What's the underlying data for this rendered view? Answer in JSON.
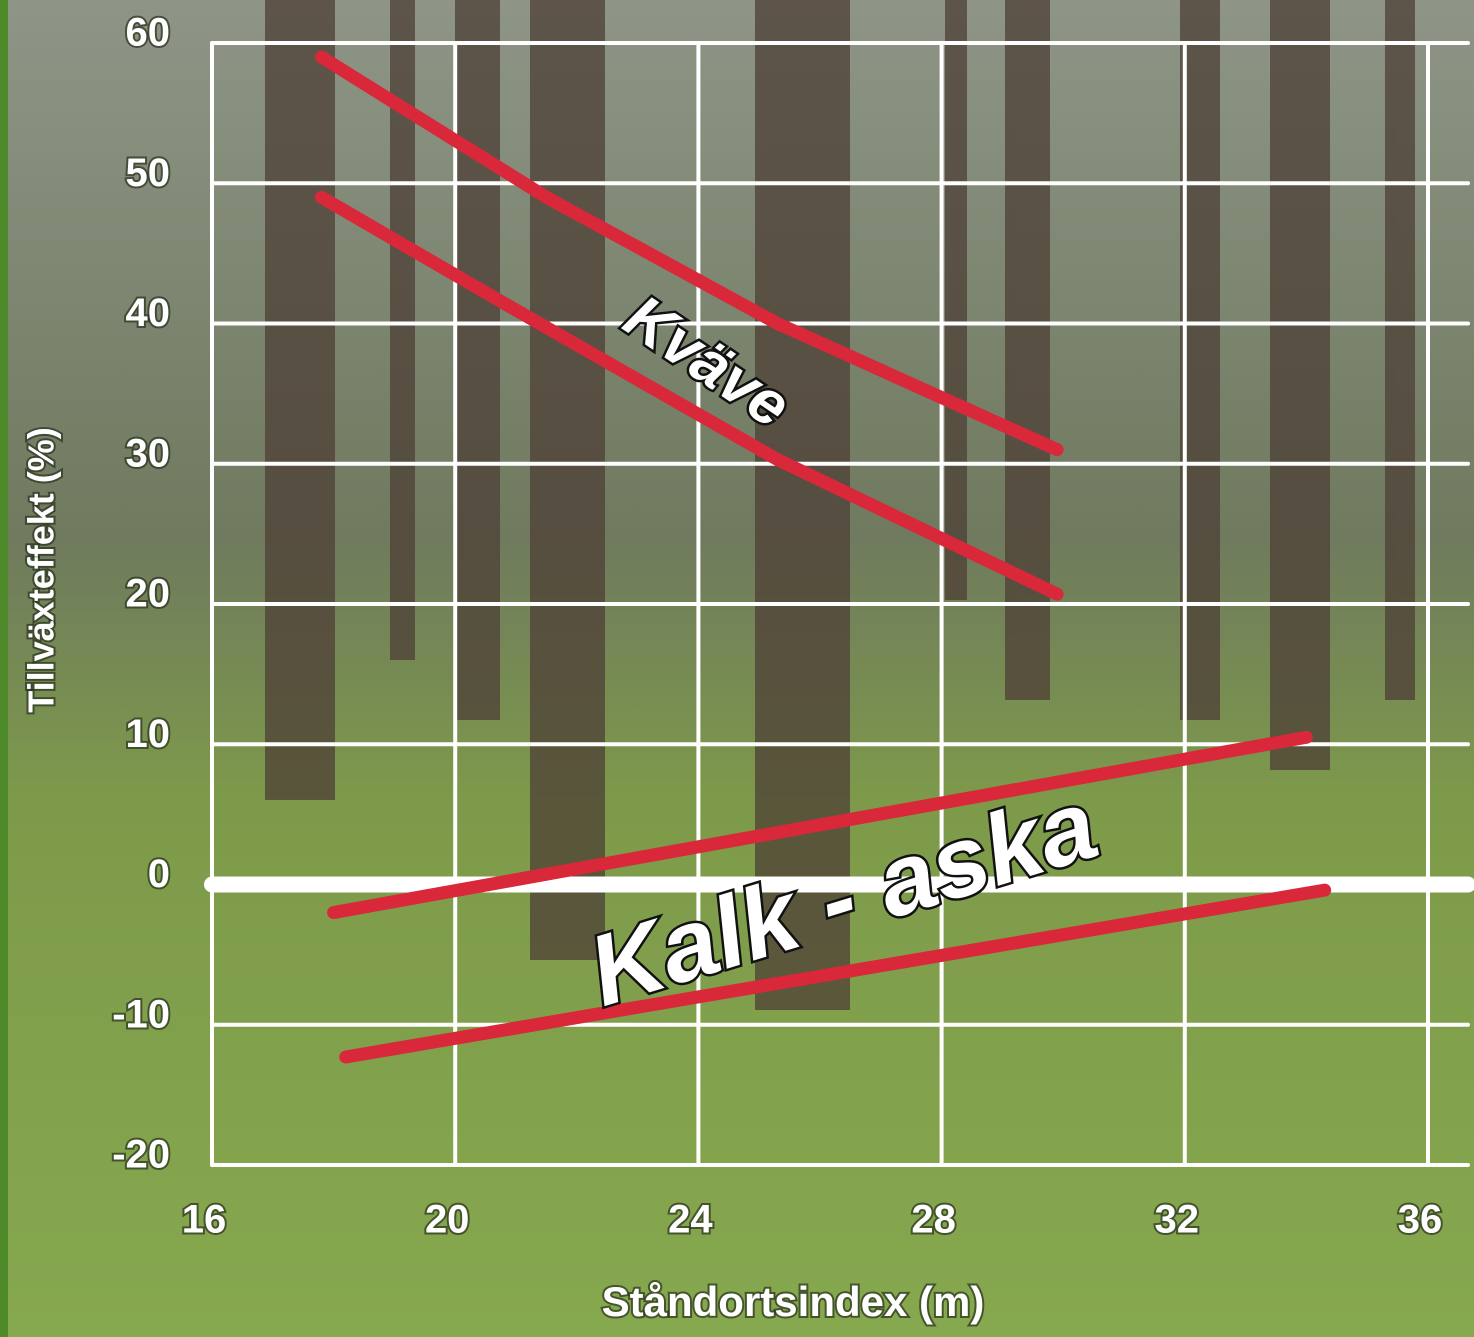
{
  "chart_data": {
    "type": "line",
    "xlabel": "Ståndortsindex (m)",
    "ylabel": "Tillväxteffekt (%)",
    "xlim": [
      16,
      36
    ],
    "xticks": [
      16,
      20,
      24,
      28,
      32,
      36
    ],
    "ylim": [
      -20,
      60
    ],
    "yticks": [
      -20,
      -10,
      0,
      10,
      20,
      30,
      40,
      50,
      60
    ],
    "grid": true,
    "annotations": [
      "Kväve",
      "Kalk - aska"
    ],
    "series": [
      {
        "color": "#d8283a",
        "x": [
          17.8,
          21.5,
          25.3,
          29.9
        ],
        "values": [
          59,
          49,
          40,
          31
        ]
      },
      {
        "color": "#d8283a",
        "x": [
          17.8,
          20.7,
          25.3,
          29.9
        ],
        "values": [
          49,
          41.7,
          30.3,
          20.7
        ]
      },
      {
        "color": "#d8283a",
        "x": [
          18.0,
          34.0
        ],
        "values": [
          -2,
          10.5
        ]
      },
      {
        "color": "#d8283a",
        "x": [
          18.2,
          34.3
        ],
        "values": [
          -12.3,
          -0.4
        ]
      }
    ]
  }
}
